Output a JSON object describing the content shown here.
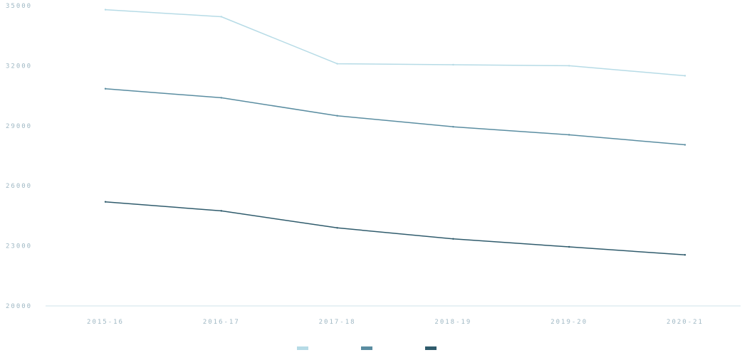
{
  "chart_data": {
    "type": "line",
    "title": "",
    "xlabel": "",
    "ylabel": "",
    "categories": [
      "2015-16",
      "2016-17",
      "2017-18",
      "2018-19",
      "2019-20",
      "2020-21"
    ],
    "ylim": [
      20000,
      35000
    ],
    "yticks": [
      20000,
      23000,
      26000,
      29000,
      32000,
      35000
    ],
    "ytick_labels": [
      "20000",
      "23000",
      "26000",
      "29000",
      "32000",
      "35000"
    ],
    "grid": false,
    "legend_position": "bottom",
    "series": [
      {
        "name": "",
        "color": "#b6dbe6",
        "values": [
          34800,
          34450,
          32100,
          32050,
          32000,
          31500
        ]
      },
      {
        "name": "",
        "color": "#5a8da1",
        "values": [
          30850,
          30400,
          29500,
          28950,
          28550,
          28050
        ]
      },
      {
        "name": "",
        "color": "#2f5b6c",
        "values": [
          25200,
          24750,
          23900,
          23350,
          22950,
          22550
        ]
      }
    ],
    "legend": [
      {
        "label": "",
        "color": "#b6dbe6"
      },
      {
        "label": "",
        "color": "#5a8da1"
      },
      {
        "label": "",
        "color": "#2f5b6c"
      }
    ]
  }
}
